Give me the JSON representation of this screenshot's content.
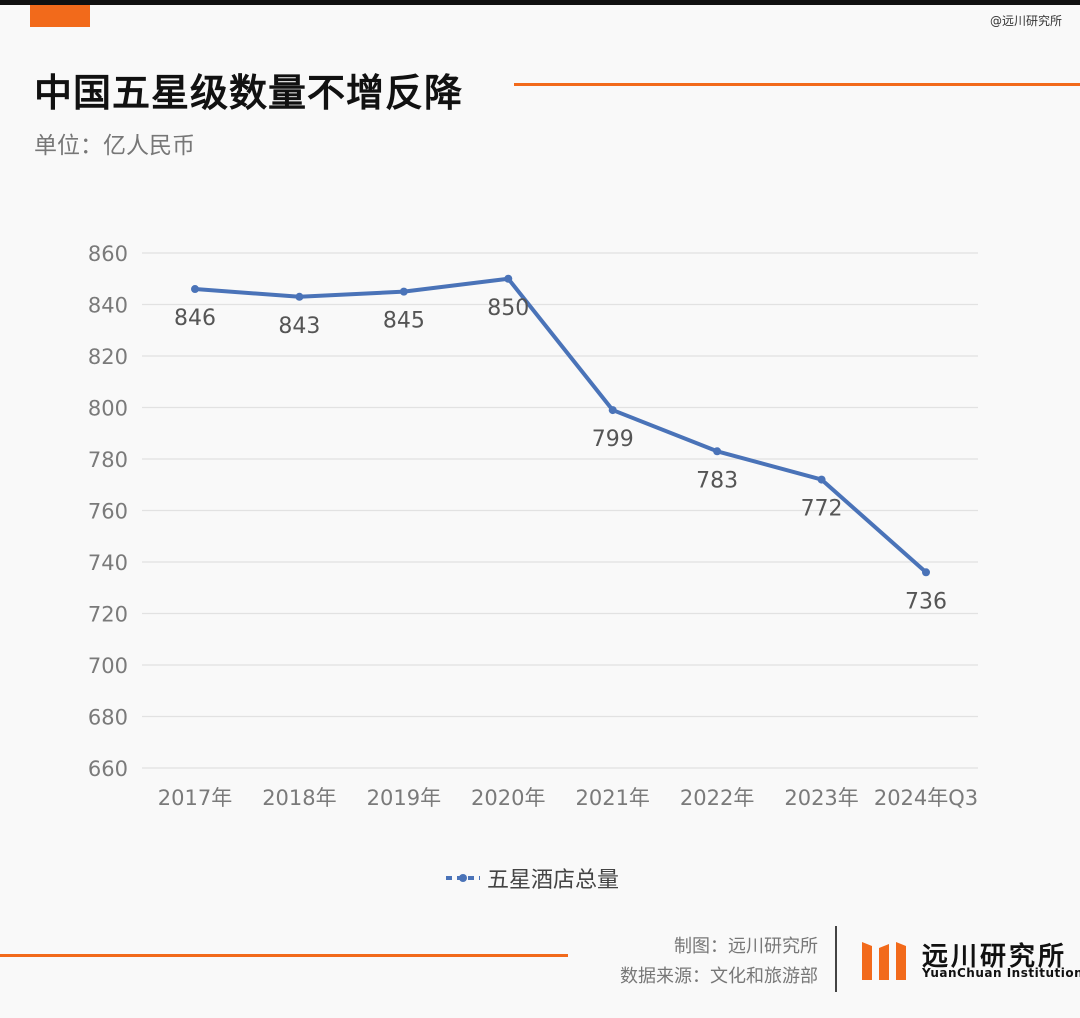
{
  "header": {
    "watermark": "@远川研究所",
    "title": "中国五星级数量不增反降",
    "subtitle": "单位：亿人民币"
  },
  "colors": {
    "accent": "#f26a1b",
    "series": "#4a73b8",
    "grid": "#e2e2e2",
    "tick": "#7a7a7a"
  },
  "chart_data": {
    "type": "line",
    "categories": [
      "2017年",
      "2018年",
      "2019年",
      "2020年",
      "2021年",
      "2022年",
      "2023年",
      "2024年Q3"
    ],
    "series": [
      {
        "name": "五星酒店总量",
        "values": [
          846,
          843,
          845,
          850,
          799,
          783,
          772,
          736
        ]
      }
    ],
    "ylim": [
      660,
      860
    ],
    "yticks": [
      860,
      840,
      820,
      800,
      780,
      760,
      740,
      720,
      700,
      680,
      660
    ],
    "grid": true,
    "legend_position": "bottom-center",
    "data_labels": true
  },
  "footer": {
    "credit_chart": "制图：远川研究所",
    "credit_source": "数据来源：文化和旅游部",
    "logo_text": "远川研究所",
    "logo_sub": "YuanChuan Institution"
  }
}
